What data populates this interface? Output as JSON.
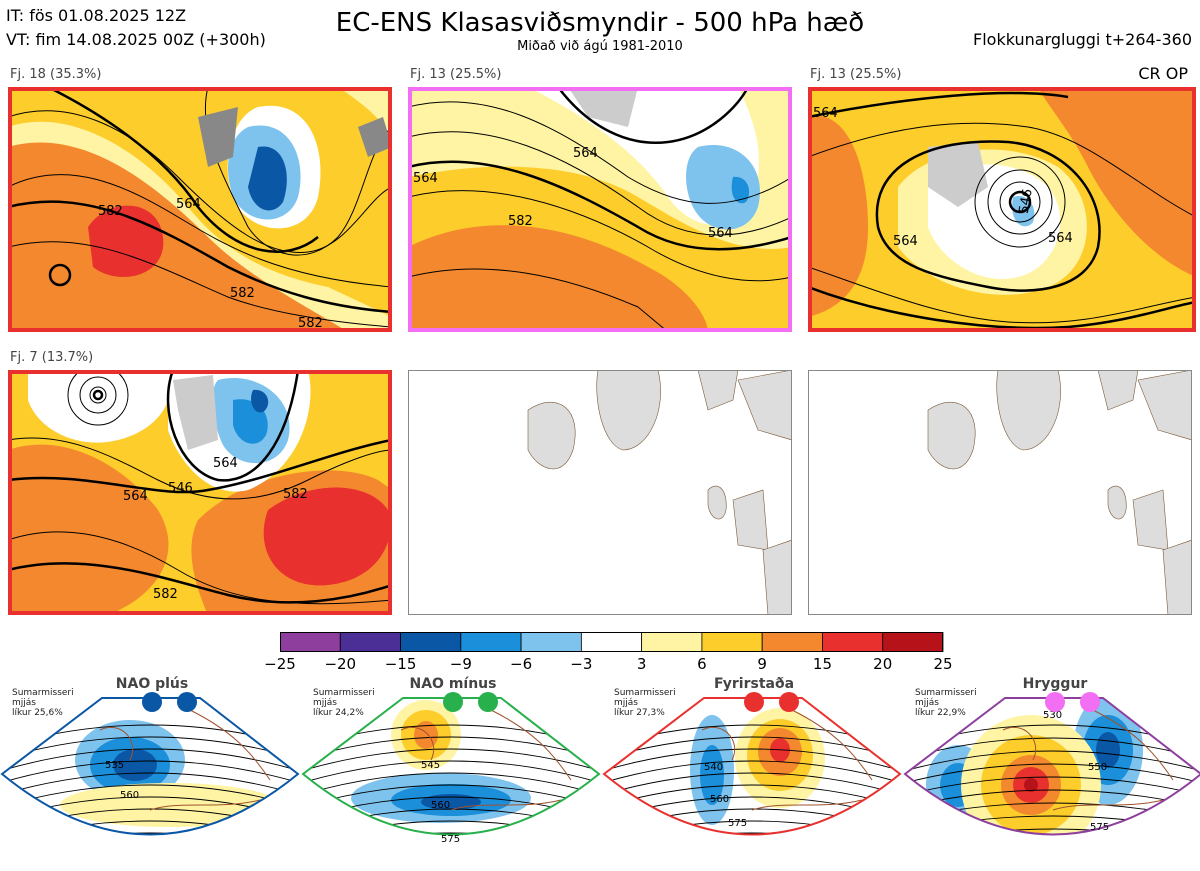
{
  "header": {
    "it": "IT: fös 01.08.2025 12Z",
    "vt": "VT: fim 14.08.2025 00Z  (+300h)",
    "title": "EC-ENS Klasasviðsmyndir - 500 hPa hæð",
    "subtitle": "Miðað við ágú 1981-2010",
    "window": "Flokkunargluggi t+264-360",
    "cr_op": "CR OP"
  },
  "panels": [
    {
      "label": "Fj. 18 (35.3%)",
      "border": "#e8312e",
      "contours": [
        "582",
        "564",
        "582",
        "582"
      ]
    },
    {
      "label": "Fj. 13 (25.5%)",
      "border": "#f26ef2",
      "contours": [
        "564",
        "564",
        "582",
        "564"
      ]
    },
    {
      "label": "Fj. 13 (25.5%)",
      "border": "#e8312e",
      "contours": [
        "564",
        "546",
        "564",
        "564"
      ]
    },
    {
      "label": "Fj. 7 (13.7%)",
      "border": "#e8312e",
      "contours": [
        "564",
        "546",
        "582",
        "564",
        "582"
      ]
    },
    {
      "label": "",
      "border": "#888888",
      "contours": []
    },
    {
      "label": "",
      "border": "#888888",
      "contours": []
    }
  ],
  "colorbar": {
    "ticks": [
      "−25",
      "−20",
      "−15",
      "−9",
      "−6",
      "−3",
      "3",
      "6",
      "9",
      "15",
      "20",
      "25"
    ],
    "colors": [
      "#8e3f9e",
      "#4b2f96",
      "#0a57a6",
      "#1b8fd9",
      "#7ec2ee",
      "#ffffff",
      "#fff4a3",
      "#fdcd2c",
      "#f4882e",
      "#e8312e",
      "#b51319"
    ]
  },
  "regimes": [
    {
      "name": "NAO plús",
      "season": "Sumarmisseri",
      "smooth": "mjjás",
      "prob": "líkur 25,6%",
      "dot_color": "#0a57a6",
      "frame": "#0a57a6",
      "contours": [
        "535",
        "560"
      ]
    },
    {
      "name": "NAO mínus",
      "season": "Sumarmisseri",
      "smooth": "mjjás",
      "prob": "líkur 24,2%",
      "dot_color": "#27b04b",
      "frame": "#27b04b",
      "contours": [
        "545",
        "560",
        "575"
      ]
    },
    {
      "name": "Fyrirstaða",
      "season": "Sumarmisseri",
      "smooth": "mjjás",
      "prob": "líkur 27,3%",
      "dot_color": "#e8312e",
      "frame": "#e8312e",
      "contours": [
        "540",
        "560",
        "575"
      ]
    },
    {
      "name": "Hryggur",
      "season": "Sumarmisseri",
      "smooth": "mjjás",
      "prob": "líkur 22,9%",
      "dot_color": "#f26ef2",
      "frame": "#8e3f9e",
      "contours": [
        "530",
        "550",
        "575"
      ]
    }
  ]
}
